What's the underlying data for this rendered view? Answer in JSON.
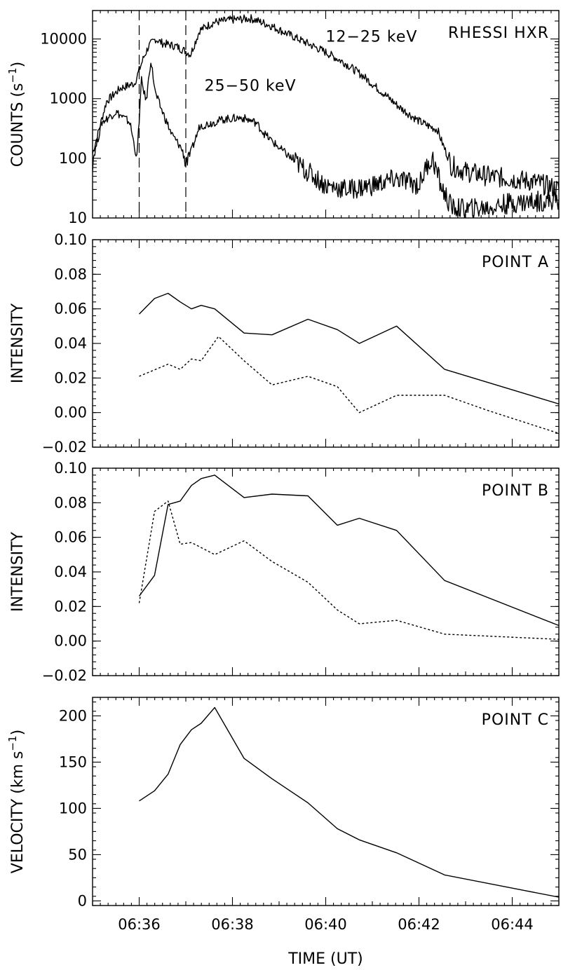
{
  "chart_data": [
    {
      "type": "line",
      "panel": "hxr",
      "title": "RHESSI HXR",
      "ylabel": "COUNTS (s",
      "ylabel_sup": "-1",
      "ylabel_close": ")",
      "yscale": "log",
      "ylim": [
        10,
        30000
      ],
      "xlim": [
        35.0,
        45.0
      ],
      "yticks": [
        10,
        100,
        1000,
        10000
      ],
      "ytick_labels": [
        "10",
        "100",
        "1000",
        "10000"
      ],
      "vlines_x": [
        36.0,
        37.0
      ],
      "series": [
        {
          "name": "12-25 keV",
          "label_text": "12−25 keV",
          "label_at": [
            40.0,
            9000
          ],
          "x": [
            35.0,
            35.3,
            35.6,
            35.9,
            36.1,
            36.2,
            36.35,
            36.5,
            36.8,
            37.0,
            37.1,
            37.3,
            37.6,
            38.0,
            38.4,
            38.8,
            39.2,
            39.6,
            40.0,
            40.4,
            40.8,
            41.2,
            41.6,
            42.0,
            42.2,
            42.4,
            42.5,
            42.7,
            43.0,
            43.5,
            44.0,
            44.5,
            45.0
          ],
          "y": [
            120,
            900,
            1500,
            1800,
            5000,
            7500,
            10000,
            8500,
            7500,
            6200,
            5500,
            14000,
            19000,
            21000,
            22000,
            17000,
            12000,
            8500,
            6000,
            4000,
            2400,
            1300,
            700,
            420,
            350,
            300,
            180,
            75,
            60,
            50,
            45,
            40,
            30
          ]
        },
        {
          "name": "25-50 keV",
          "label_text": "25−50 keV",
          "label_at": [
            37.4,
            1350
          ],
          "x": [
            35.0,
            35.2,
            35.5,
            35.8,
            35.95,
            36.05,
            36.15,
            36.25,
            36.35,
            36.5,
            36.7,
            36.9,
            37.0,
            37.1,
            37.3,
            37.5,
            37.8,
            38.2,
            38.5,
            38.7,
            39.0,
            39.5,
            40.0,
            40.5,
            41.0,
            41.5,
            41.8,
            42.0,
            42.2,
            42.3,
            42.5,
            42.7,
            43.0,
            43.5,
            44.0,
            45.0
          ],
          "y": [
            90,
            400,
            600,
            400,
            100,
            2000,
            900,
            4500,
            1200,
            600,
            250,
            150,
            90,
            120,
            350,
            380,
            450,
            480,
            400,
            250,
            150,
            70,
            35,
            30,
            35,
            45,
            40,
            35,
            85,
            95,
            30,
            15,
            14,
            15,
            18,
            20
          ]
        }
      ]
    },
    {
      "type": "line",
      "panel": "a",
      "title": "POINT A",
      "ylabel": "INTENSITY",
      "ylim": [
        -0.02,
        0.1
      ],
      "xlim": [
        35.0,
        45.0
      ],
      "yticks": [
        -0.02,
        0.0,
        0.02,
        0.04,
        0.06,
        0.08,
        0.1
      ],
      "ytick_labels": [
        "−0.02",
        "0.00",
        "0.02",
        "0.04",
        "0.06",
        "0.08",
        "0.10"
      ],
      "series": [
        {
          "style": "solid",
          "x": [
            36.0,
            36.33,
            36.62,
            36.88,
            37.12,
            37.33,
            37.62,
            38.25,
            38.85,
            39.62,
            40.25,
            40.72,
            41.52,
            42.55,
            45.0
          ],
          "y": [
            0.057,
            0.066,
            0.069,
            0.064,
            0.06,
            0.062,
            0.06,
            0.046,
            0.045,
            0.054,
            0.048,
            0.04,
            0.05,
            0.025,
            0.005
          ]
        },
        {
          "style": "dotted",
          "x": [
            36.0,
            36.62,
            36.88,
            37.12,
            37.33,
            37.7,
            38.25,
            38.85,
            39.62,
            40.25,
            40.72,
            41.52,
            42.55,
            43.5,
            45.0
          ],
          "y": [
            0.021,
            0.028,
            0.025,
            0.031,
            0.03,
            0.044,
            0.03,
            0.016,
            0.021,
            0.015,
            0.0,
            0.01,
            0.01,
            0.001,
            -0.012
          ]
        }
      ]
    },
    {
      "type": "line",
      "panel": "b",
      "title": "POINT B",
      "ylabel": "INTENSITY",
      "ylim": [
        -0.02,
        0.1
      ],
      "xlim": [
        35.0,
        45.0
      ],
      "yticks": [
        -0.02,
        0.0,
        0.02,
        0.04,
        0.06,
        0.08,
        0.1
      ],
      "ytick_labels": [
        "−0.02",
        "0.00",
        "0.02",
        "0.04",
        "0.06",
        "0.08",
        "0.10"
      ],
      "series": [
        {
          "style": "solid",
          "x": [
            36.0,
            36.33,
            36.62,
            36.88,
            37.12,
            37.33,
            37.62,
            38.25,
            38.85,
            39.62,
            40.25,
            40.72,
            41.52,
            42.55,
            45.0
          ],
          "y": [
            0.026,
            0.038,
            0.079,
            0.081,
            0.09,
            0.094,
            0.096,
            0.083,
            0.085,
            0.084,
            0.067,
            0.071,
            0.064,
            0.035,
            0.009
          ]
        },
        {
          "style": "dotted",
          "x": [
            36.0,
            36.33,
            36.62,
            36.88,
            37.12,
            37.62,
            38.25,
            38.85,
            39.62,
            40.25,
            40.72,
            41.52,
            42.55,
            45.0
          ],
          "y": [
            0.022,
            0.075,
            0.081,
            0.056,
            0.057,
            0.05,
            0.058,
            0.046,
            0.034,
            0.018,
            0.01,
            0.012,
            0.004,
            0.001
          ]
        }
      ]
    },
    {
      "type": "line",
      "panel": "c",
      "title": "POINT C",
      "ylabel": "VELOCITY (km s",
      "ylabel_sup": "-1",
      "ylabel_close": ")",
      "ylim": [
        -5,
        220
      ],
      "xlim": [
        35.0,
        45.0
      ],
      "xlabel": "TIME (UT)",
      "xtick_values": [
        36,
        38,
        40,
        42,
        44
      ],
      "xtick_labels": [
        "06:36",
        "06:38",
        "06:40",
        "06:42",
        "06:44"
      ],
      "yticks": [
        0,
        50,
        100,
        150,
        200
      ],
      "ytick_labels": [
        "0",
        "50",
        "100",
        "150",
        "200"
      ],
      "series": [
        {
          "style": "solid",
          "x": [
            36.0,
            36.33,
            36.62,
            36.88,
            37.12,
            37.33,
            37.62,
            38.25,
            38.85,
            39.62,
            40.25,
            40.72,
            41.52,
            42.55,
            45.0
          ],
          "y": [
            108,
            119,
            137,
            169,
            185,
            192,
            209,
            154,
            132,
            106,
            78,
            66,
            52,
            28,
            4
          ]
        }
      ]
    }
  ]
}
